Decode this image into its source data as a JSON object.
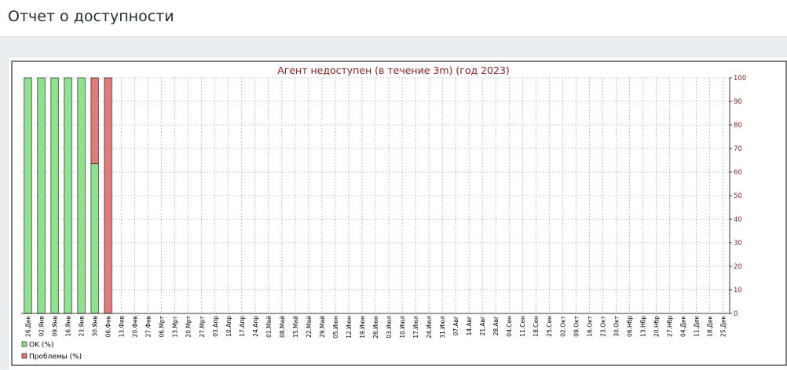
{
  "page": {
    "title": "Отчет о доступности"
  },
  "colors": {
    "ok": "#8fe38f",
    "problems": "#e47a7a",
    "title": "#8b1c1c",
    "grid": "#9a9a9a"
  },
  "chart_data": {
    "type": "bar",
    "stacked": true,
    "title": "Агент недоступен (в течение 3m) (год 2023)",
    "ylim": [
      0,
      100
    ],
    "yticks": [
      0,
      10,
      20,
      30,
      40,
      50,
      60,
      70,
      80,
      90,
      100
    ],
    "y_axis_side": "right",
    "grid": true,
    "legend_position": "bottom-left",
    "categories": [
      "26.Дек",
      "02.Янв",
      "09.Янв",
      "16.Янв",
      "23.Янв",
      "30.Янв",
      "06.Фев",
      "13.Фев",
      "20.Фев",
      "27.Фев",
      "06.Мрт",
      "13.Мрт",
      "20.Мрт",
      "27.Мрт",
      "03.Апр",
      "10.Апр",
      "17.Апр",
      "24.Апр",
      "01.Май",
      "08.Май",
      "15.Май",
      "22.Май",
      "29.Май",
      "05.Июн",
      "12.Июн",
      "19.Июн",
      "26.Июн",
      "03.Июл",
      "10.Июл",
      "17.Июл",
      "24.Июл",
      "31.Июл",
      "07.Авг",
      "14.Авг",
      "21.Авг",
      "28.Авг",
      "04.Сен",
      "11.Сен",
      "18.Сен",
      "25.Сен",
      "02.Окт",
      "09.Окт",
      "16.Окт",
      "23.Окт",
      "30.Окт",
      "06.Нбр",
      "13.Нбр",
      "20.Нбр",
      "27.Нбр",
      "04.Дек",
      "11.Дек",
      "18.Дек",
      "25.Дек"
    ],
    "series": [
      {
        "name": "OK (%)",
        "values": [
          100,
          100,
          100,
          100,
          100,
          63.5,
          0,
          null,
          null,
          null,
          null,
          null,
          null,
          null,
          null,
          null,
          null,
          null,
          null,
          null,
          null,
          null,
          null,
          null,
          null,
          null,
          null,
          null,
          null,
          null,
          null,
          null,
          null,
          null,
          null,
          null,
          null,
          null,
          null,
          null,
          null,
          null,
          null,
          null,
          null,
          null,
          null,
          null,
          null,
          null,
          null,
          null,
          null
        ]
      },
      {
        "name": "Проблемы (%)",
        "values": [
          0,
          0,
          0,
          0,
          0,
          36.5,
          100,
          null,
          null,
          null,
          null,
          null,
          null,
          null,
          null,
          null,
          null,
          null,
          null,
          null,
          null,
          null,
          null,
          null,
          null,
          null,
          null,
          null,
          null,
          null,
          null,
          null,
          null,
          null,
          null,
          null,
          null,
          null,
          null,
          null,
          null,
          null,
          null,
          null,
          null,
          null,
          null,
          null,
          null,
          null,
          null,
          null,
          null
        ]
      }
    ]
  }
}
